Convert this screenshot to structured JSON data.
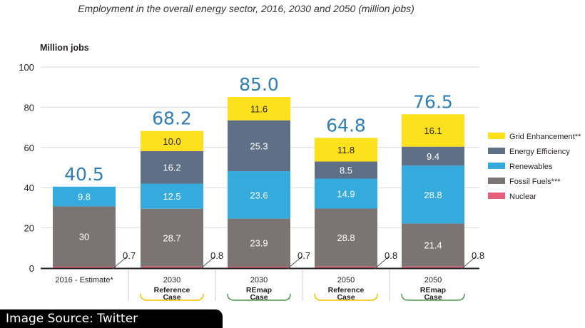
{
  "source_badge": "Image Source: Twitter",
  "chart_data": {
    "type": "bar",
    "stacked": true,
    "title": "Employment in the overall energy sector, 2016, 2030 and 2050 (million jobs)",
    "ylabel": "Million jobs",
    "ylim": [
      0,
      100
    ],
    "yticks": [
      0,
      20,
      40,
      60,
      80,
      100
    ],
    "grid": true,
    "legend_position": "right",
    "categories": [
      {
        "main": "2016 - Estimate*",
        "sub": []
      },
      {
        "main": "2030",
        "sub": [
          "Reference",
          "Case"
        ],
        "bracket_color": "#f3c300"
      },
      {
        "main": "2030",
        "sub": [
          "REmap",
          "Case"
        ],
        "bracket_color": "#4f9a4f"
      },
      {
        "main": "2050",
        "sub": [
          "Reference",
          "Case"
        ],
        "bracket_color": "#f3c300"
      },
      {
        "main": "2050",
        "sub": [
          "REmap",
          "Case"
        ],
        "bracket_color": "#4f9a4f"
      }
    ],
    "series": [
      {
        "name": "Nuclear",
        "color": "#e5607a",
        "values": [
          0.7,
          0.8,
          0.7,
          0.8,
          0.8
        ],
        "labels": [
          "0.7",
          "0.8",
          "0.7",
          "0.8",
          "0.8"
        ]
      },
      {
        "name": "Fossil Fuels***",
        "color": "#7b7473",
        "values": [
          30,
          28.7,
          23.9,
          28.8,
          21.4
        ],
        "labels": [
          "30",
          "28.7",
          "23.9",
          "28.8",
          "21.4"
        ]
      },
      {
        "name": "Renewables",
        "color": "#35aadd",
        "values": [
          9.8,
          12.5,
          23.6,
          14.9,
          28.8
        ],
        "labels": [
          "9.8",
          "12.5",
          "23.6",
          "14.9",
          "28.8"
        ]
      },
      {
        "name": "Energy Efficiency",
        "color": "#5f6f86",
        "values": [
          0,
          16.2,
          25.3,
          8.5,
          9.4
        ],
        "labels": [
          "",
          "16.2",
          "25.3",
          "8.5",
          "9.4"
        ]
      },
      {
        "name": "Grid Enhancement**",
        "color": "#fde11c",
        "values": [
          0,
          10.0,
          11.6,
          11.8,
          16.1
        ],
        "labels": [
          "",
          "10.0",
          "11.6",
          "11.8",
          "16.1"
        ]
      }
    ],
    "totals": [
      "40.5",
      "68.2",
      "85.0",
      "64.8",
      "76.5"
    ],
    "legend_order": [
      "Grid Enhancement**",
      "Energy Efficiency",
      "Renewables",
      "Fossil Fuels***",
      "Nuclear"
    ]
  }
}
